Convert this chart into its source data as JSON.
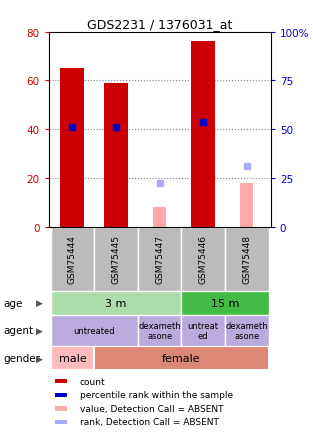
{
  "title": "GDS2231 / 1376031_at",
  "samples": [
    "GSM75444",
    "GSM75445",
    "GSM75447",
    "GSM75446",
    "GSM75448"
  ],
  "count_values": [
    65,
    59,
    null,
    76,
    null
  ],
  "percentile_values": [
    41,
    41,
    null,
    43,
    null
  ],
  "absent_value_values": [
    null,
    null,
    8,
    null,
    18
  ],
  "absent_rank_values": [
    null,
    null,
    18,
    null,
    25
  ],
  "ylim_left": [
    0,
    80
  ],
  "ylim_right": [
    0,
    100
  ],
  "yticks_left": [
    0,
    20,
    40,
    60,
    80
  ],
  "yticks_right": [
    0,
    25,
    50,
    75,
    100
  ],
  "left_tick_labels": [
    "0",
    "20",
    "40",
    "60",
    "80"
  ],
  "right_tick_labels": [
    "0",
    "25",
    "50",
    "75",
    "100%"
  ],
  "count_color": "#cc0000",
  "percentile_color": "#0000cc",
  "absent_value_color": "#ffaaaa",
  "absent_rank_color": "#aaaaff",
  "age_colors": {
    "3 m": "#aaddaa",
    "15 m": "#44bb44"
  },
  "agent_color": "#bbaadd",
  "gender_colors": {
    "male": "#ffbbbb",
    "female": "#dd8877"
  },
  "sample_bg_color": "#bbbbbb",
  "bar_width": 0.55,
  "absent_bar_width": 0.3,
  "gridline_vals": [
    20,
    40,
    60
  ],
  "legend_items": [
    {
      "color": "#cc0000",
      "label": "count"
    },
    {
      "color": "#0000cc",
      "label": "percentile rank within the sample"
    },
    {
      "color": "#ffaaaa",
      "label": "value, Detection Call = ABSENT"
    },
    {
      "color": "#aaaaff",
      "label": "rank, Detection Call = ABSENT"
    }
  ]
}
